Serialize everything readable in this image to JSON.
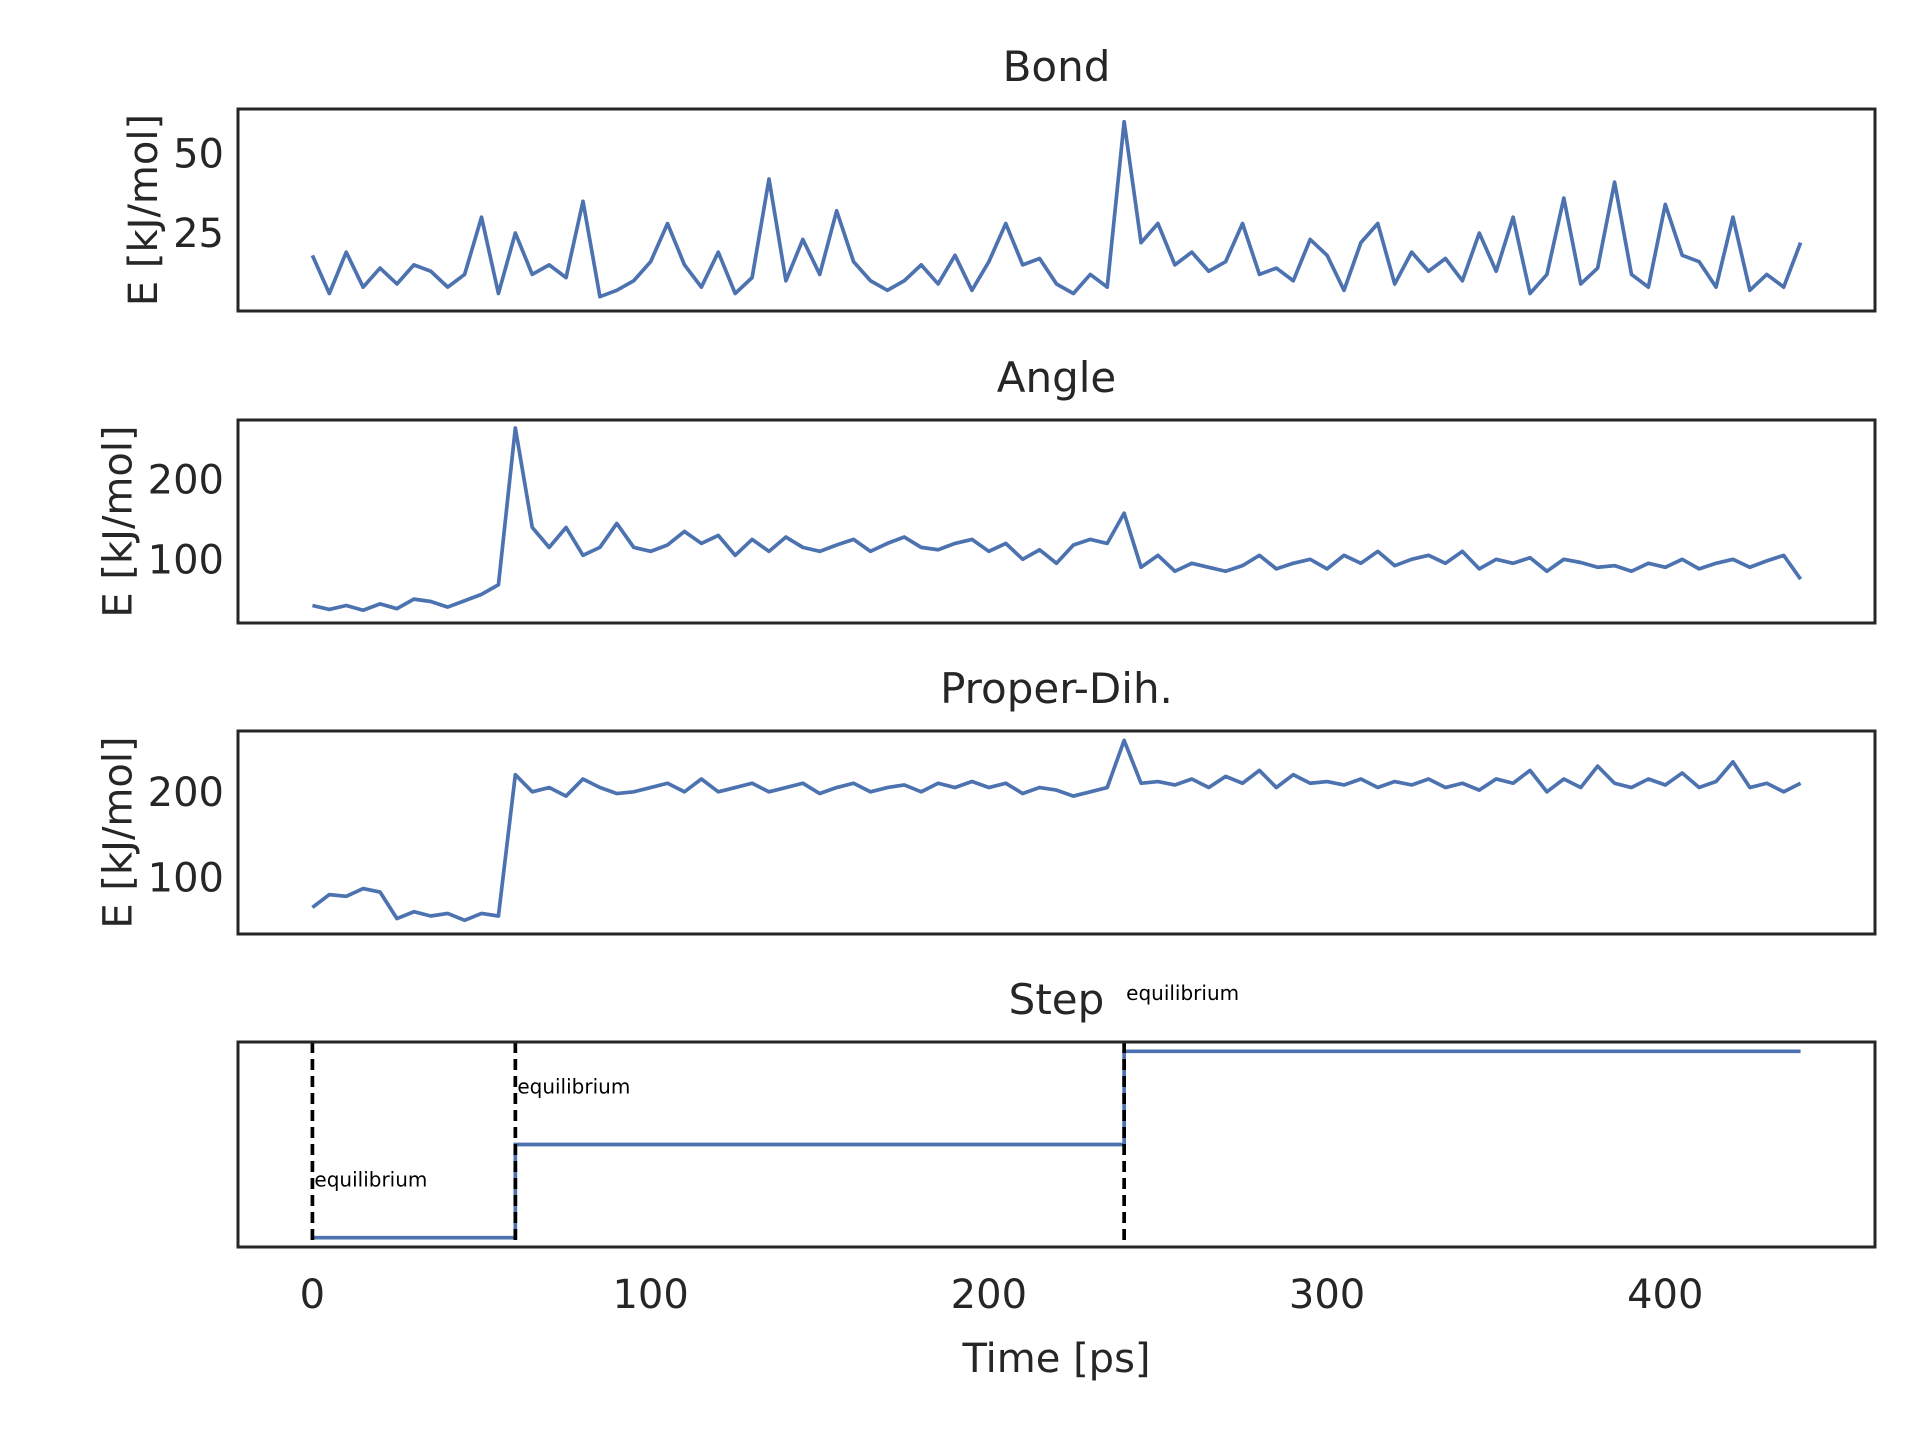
{
  "chart_data": [
    {
      "type": "line",
      "title": "Bond",
      "ylabel": "E [kJ/mol]",
      "color": "#4c72b0",
      "xlim": [
        -22,
        462
      ],
      "ylim": [
        0.5,
        64
      ],
      "yticks": [
        25,
        50
      ],
      "x": [
        0,
        5,
        10,
        15,
        20,
        25,
        30,
        35,
        40,
        45,
        50,
        55,
        60,
        65,
        70,
        75,
        80,
        85,
        90,
        95,
        100,
        105,
        110,
        115,
        120,
        125,
        130,
        135,
        140,
        145,
        150,
        155,
        160,
        165,
        170,
        175,
        180,
        185,
        190,
        195,
        200,
        205,
        210,
        215,
        220,
        225,
        230,
        235,
        240,
        245,
        250,
        255,
        260,
        265,
        270,
        275,
        280,
        285,
        290,
        295,
        300,
        305,
        310,
        315,
        320,
        325,
        330,
        335,
        340,
        345,
        350,
        355,
        360,
        365,
        370,
        375,
        380,
        385,
        390,
        395,
        400,
        405,
        410,
        415,
        420,
        425,
        430,
        435,
        440
      ],
      "values": [
        18,
        6,
        19,
        8,
        14,
        9,
        15,
        13,
        8,
        12,
        30,
        6,
        25,
        12,
        15,
        11,
        35,
        5,
        7,
        10,
        16,
        28,
        15,
        8,
        19,
        6,
        11,
        42,
        10,
        23,
        12,
        32,
        16,
        10,
        7,
        10,
        15,
        9,
        18,
        7,
        16,
        28,
        15,
        17,
        9,
        6,
        12,
        8,
        60,
        22,
        28,
        15,
        19,
        13,
        16,
        28,
        12,
        14,
        10,
        23,
        18,
        7,
        22,
        28,
        9,
        19,
        13,
        17,
        10,
        25,
        13,
        30,
        6,
        12,
        36,
        9,
        14,
        41,
        12,
        8,
        34,
        18,
        16,
        8,
        30,
        7,
        12,
        8,
        22
      ]
    },
    {
      "type": "line",
      "title": "Angle",
      "ylabel": "E [kJ/mol]",
      "color": "#4c72b0",
      "xlim": [
        -22,
        462
      ],
      "ylim": [
        20,
        275
      ],
      "yticks": [
        100,
        200
      ],
      "x": [
        0,
        5,
        10,
        15,
        20,
        25,
        30,
        35,
        40,
        45,
        50,
        55,
        60,
        65,
        70,
        75,
        80,
        85,
        90,
        95,
        100,
        105,
        110,
        115,
        120,
        125,
        130,
        135,
        140,
        145,
        150,
        155,
        160,
        165,
        170,
        175,
        180,
        185,
        190,
        195,
        200,
        205,
        210,
        215,
        220,
        225,
        230,
        235,
        240,
        245,
        250,
        255,
        260,
        265,
        270,
        275,
        280,
        285,
        290,
        295,
        300,
        305,
        310,
        315,
        320,
        325,
        330,
        335,
        340,
        345,
        350,
        355,
        360,
        365,
        370,
        375,
        380,
        385,
        390,
        395,
        400,
        405,
        410,
        415,
        420,
        425,
        430,
        435,
        440
      ],
      "values": [
        42,
        37,
        42,
        36,
        44,
        38,
        50,
        47,
        40,
        48,
        56,
        68,
        265,
        140,
        115,
        140,
        105,
        115,
        145,
        115,
        110,
        118,
        135,
        120,
        130,
        105,
        125,
        110,
        128,
        115,
        110,
        118,
        125,
        110,
        120,
        128,
        115,
        112,
        120,
        125,
        110,
        120,
        100,
        112,
        95,
        118,
        125,
        120,
        158,
        90,
        105,
        85,
        95,
        90,
        85,
        92,
        105,
        88,
        95,
        100,
        88,
        105,
        95,
        110,
        92,
        100,
        105,
        95,
        110,
        88,
        100,
        95,
        102,
        85,
        100,
        96,
        90,
        92,
        85,
        95,
        90,
        100,
        88,
        95,
        100,
        90,
        98,
        105,
        75
      ]
    },
    {
      "type": "line",
      "title": "Proper-Dih.",
      "ylabel": "E [kJ/mol]",
      "color": "#4c72b0",
      "xlim": [
        -22,
        462
      ],
      "ylim": [
        34,
        271
      ],
      "yticks": [
        100,
        200
      ],
      "x": [
        0,
        5,
        10,
        15,
        20,
        25,
        30,
        35,
        40,
        45,
        50,
        55,
        60,
        65,
        70,
        75,
        80,
        85,
        90,
        95,
        100,
        105,
        110,
        115,
        120,
        125,
        130,
        135,
        140,
        145,
        150,
        155,
        160,
        165,
        170,
        175,
        180,
        185,
        190,
        195,
        200,
        205,
        210,
        215,
        220,
        225,
        230,
        235,
        240,
        245,
        250,
        255,
        260,
        265,
        270,
        275,
        280,
        285,
        290,
        295,
        300,
        305,
        310,
        315,
        320,
        325,
        330,
        335,
        340,
        345,
        350,
        355,
        360,
        365,
        370,
        375,
        380,
        385,
        390,
        395,
        400,
        405,
        410,
        415,
        420,
        425,
        430,
        435,
        440
      ],
      "values": [
        65,
        80,
        78,
        87,
        83,
        52,
        60,
        55,
        58,
        50,
        58,
        55,
        220,
        200,
        205,
        195,
        215,
        205,
        198,
        200,
        205,
        210,
        200,
        215,
        200,
        205,
        210,
        200,
        205,
        210,
        198,
        205,
        210,
        200,
        205,
        208,
        200,
        210,
        205,
        212,
        205,
        210,
        198,
        205,
        202,
        195,
        200,
        205,
        260,
        210,
        212,
        208,
        215,
        205,
        218,
        210,
        225,
        205,
        220,
        210,
        212,
        208,
        215,
        205,
        212,
        208,
        215,
        205,
        210,
        202,
        215,
        210,
        225,
        200,
        215,
        205,
        230,
        210,
        205,
        215,
        208,
        222,
        205,
        212,
        235,
        205,
        210,
        200,
        210
      ]
    },
    {
      "type": "step",
      "title": "Step",
      "xlabel": "Time [ps]",
      "color": "#4c72b0",
      "xlim": [
        -22,
        462
      ],
      "ylim": [
        -0.1,
        2.1
      ],
      "xticks": [
        0,
        100,
        200,
        300,
        400
      ],
      "x": [
        0,
        60,
        240,
        440
      ],
      "values": [
        0,
        1,
        2,
        2
      ],
      "vlines": [
        0,
        60,
        240
      ],
      "annotations": [
        {
          "text": "equilibrium",
          "x": 0,
          "y": 0.55
        },
        {
          "text": "equilibrium",
          "x": 60,
          "y": 1.55
        },
        {
          "text": "equilibrium",
          "x": 240,
          "y": 2.55
        }
      ]
    }
  ]
}
